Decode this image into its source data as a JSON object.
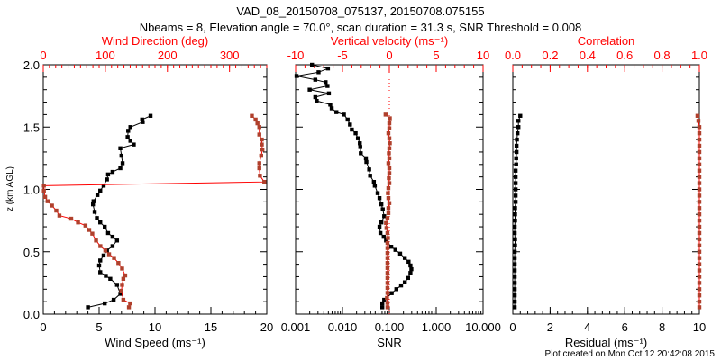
{
  "title": "VAD_08_20150708_075137, 20150708.075155",
  "subtitle": "Nbeams = 8, Elevation angle = 70.0°, scan duration = 31.3 s, SNR Threshold = 0.008",
  "footer": "Plot created on Mon Oct 12 20:42:08 2015",
  "colors": {
    "axis_top": "#ff0000",
    "primary": "#000000",
    "secondary_marker": "#b0402c",
    "secondary_line": "#ff0000"
  },
  "chart_data": [
    {
      "type": "line",
      "ylabel": "z (km AGL)",
      "ylim": [
        0,
        2.0
      ],
      "yticks": [
        "0.0",
        "0.5",
        "1.0",
        "1.5",
        "2.0"
      ],
      "xlabel": "Wind Speed (ms⁻¹)",
      "xlim": [
        0,
        20
      ],
      "xticks": [
        "0",
        "5",
        "10",
        "15",
        "20"
      ],
      "top_xlabel": "Wind Direction (deg)",
      "top_xlim": [
        0,
        360
      ],
      "top_xticks": [
        "0",
        "100",
        "200",
        "300"
      ],
      "series": [
        {
          "name": "Wind Speed",
          "axis": "bottom",
          "z": [
            0.055,
            0.086,
            0.115,
            0.163,
            0.235,
            0.283,
            0.307,
            0.336,
            0.39,
            0.43,
            0.47,
            0.51,
            0.545,
            0.59,
            0.62,
            0.65,
            0.7,
            0.735,
            0.77,
            0.82,
            0.88,
            0.905,
            0.955,
            0.99,
            1.03,
            1.08,
            1.12,
            1.14,
            1.17,
            1.21,
            1.27,
            1.33,
            1.36,
            1.39,
            1.42,
            1.47,
            1.5,
            1.54,
            1.56,
            1.59
          ],
          "values": [
            4.0,
            5.5,
            6.3,
            6.9,
            6.6,
            6.0,
            5.6,
            5.1,
            5.0,
            5.1,
            5.4,
            5.7,
            6.2,
            6.6,
            6.2,
            5.8,
            5.5,
            5.1,
            4.8,
            4.6,
            4.45,
            4.5,
            4.85,
            5.1,
            5.4,
            5.7,
            5.8,
            6.2,
            6.9,
            7.1,
            7.0,
            6.9,
            8.1,
            7.8,
            7.55,
            7.6,
            7.8,
            8.9,
            8.85,
            9.6
          ]
        },
        {
          "name": "Wind Direction",
          "axis": "top",
          "z": [
            0.055,
            0.086,
            0.115,
            0.187,
            0.235,
            0.283,
            0.31,
            0.365,
            0.41,
            0.45,
            0.48,
            0.51,
            0.545,
            0.59,
            0.645,
            0.675,
            0.71,
            0.735,
            0.765,
            0.79,
            0.83,
            0.87,
            0.905,
            0.94,
            0.99,
            1.03,
            1.06,
            1.11,
            1.17,
            1.21,
            1.27,
            1.32,
            1.36,
            1.4,
            1.44,
            1.5,
            1.53,
            1.56,
            1.59
          ],
          "values": [
            138,
            140,
            129,
            126,
            127,
            129,
            132,
            127,
            121,
            114,
            106,
            100,
            92,
            85,
            79,
            74,
            68,
            56,
            45,
            26,
            21,
            14,
            7,
            3,
            1,
            1,
            356,
            349,
            348,
            348,
            351,
            353,
            352,
            352,
            348,
            348,
            345,
            342,
            336
          ]
        }
      ]
    },
    {
      "type": "line",
      "xlabel": "SNR",
      "xscale": "log",
      "xlim": [
        0.001,
        10
      ],
      "xticks": [
        "0.001",
        "0.010",
        "0.100",
        "1.000",
        "10.000"
      ],
      "top_xlabel": "Vertical velocity (ms⁻¹)",
      "top_xlim": [
        -10,
        10
      ],
      "top_xticks": [
        "-10",
        "-5",
        "0",
        "5",
        "10"
      ],
      "series": [
        {
          "name": "SNR",
          "axis": "bottom",
          "z": [
            0.055,
            0.086,
            0.115,
            0.168,
            0.2,
            0.23,
            0.255,
            0.29,
            0.33,
            0.36,
            0.39,
            0.42,
            0.45,
            0.485,
            0.515,
            0.54,
            0.59,
            0.62,
            0.65,
            0.7,
            0.735,
            0.785,
            0.84,
            0.88,
            0.93,
            0.97,
            1.03,
            1.06,
            1.11,
            1.16,
            1.22,
            1.25,
            1.29,
            1.34,
            1.37,
            1.41,
            1.45,
            1.48,
            1.52,
            1.56,
            1.6,
            1.62,
            1.65,
            1.68,
            1.71,
            1.74,
            1.77,
            1.8,
            1.83,
            1.86,
            1.88,
            1.91,
            1.94,
            1.97,
            2.0
          ],
          "log10_values": [
            -1.15,
            -1.15,
            -1.11,
            -0.95,
            -0.85,
            -0.75,
            -0.67,
            -0.6,
            -0.55,
            -0.53,
            -0.55,
            -0.59,
            -0.67,
            -0.77,
            -0.87,
            -0.96,
            -1.07,
            -1.12,
            -1.19,
            -1.21,
            -1.17,
            -1.11,
            -1.14,
            -1.17,
            -1.21,
            -1.25,
            -1.31,
            -1.33,
            -1.41,
            -1.43,
            -1.49,
            -1.5,
            -1.61,
            -1.62,
            -1.63,
            -1.67,
            -1.72,
            -1.8,
            -1.84,
            -1.89,
            -1.97,
            -2.13,
            -2.23,
            -2.26,
            -2.55,
            -2.58,
            -2.29,
            -2.7,
            -2.32,
            -2.36,
            -2.58,
            -2.98,
            -2.51,
            -2.31,
            -2.65
          ]
        },
        {
          "name": "Vertical velocity",
          "axis": "top",
          "z": [
            0.055,
            0.09,
            0.13,
            0.17,
            0.21,
            0.25,
            0.29,
            0.33,
            0.37,
            0.41,
            0.45,
            0.49,
            0.53,
            0.57,
            0.61,
            0.65,
            0.69,
            0.73,
            0.77,
            0.81,
            0.85,
            0.89,
            0.93,
            0.97,
            1.01,
            1.05,
            1.09,
            1.13,
            1.17,
            1.21,
            1.25,
            1.29,
            1.33,
            1.37,
            1.41,
            1.45,
            1.49,
            1.53,
            1.57,
            1.6
          ],
          "values": [
            -0.2,
            -0.2,
            -0.25,
            -0.2,
            -0.2,
            -0.2,
            -0.2,
            -0.2,
            -0.2,
            -0.2,
            -0.2,
            -0.2,
            -0.2,
            -0.2,
            -0.15,
            -0.2,
            -0.3,
            -0.35,
            -0.2,
            -0.1,
            -0.1,
            0.0,
            -0.1,
            -0.15,
            -0.1,
            0.0,
            -0.05,
            0.0,
            0.0,
            -0.1,
            0.0,
            -0.05,
            0.0,
            0.05,
            0.0,
            -0.1,
            0.0,
            0.0,
            0.05,
            -0.4
          ]
        }
      ]
    },
    {
      "type": "line",
      "xlabel": "Residual (ms⁻¹)",
      "xlim": [
        0,
        10
      ],
      "xticks": [
        "0",
        "2",
        "4",
        "6",
        "8",
        "10"
      ],
      "top_xlabel": "Correlation",
      "top_xlim": [
        0,
        1
      ],
      "top_xticks": [
        "0.0",
        "0.2",
        "0.4",
        "0.6",
        "0.8",
        "1.0"
      ],
      "series": [
        {
          "name": "Residual",
          "axis": "bottom",
          "z": [
            0.055,
            0.1,
            0.15,
            0.2,
            0.25,
            0.3,
            0.35,
            0.4,
            0.45,
            0.5,
            0.55,
            0.6,
            0.65,
            0.7,
            0.75,
            0.8,
            0.85,
            0.9,
            0.95,
            1.0,
            1.05,
            1.1,
            1.15,
            1.2,
            1.25,
            1.3,
            1.35,
            1.4,
            1.45,
            1.5,
            1.55,
            1.59
          ],
          "values": [
            0.1,
            0.1,
            0.1,
            0.1,
            0.1,
            0.1,
            0.1,
            0.1,
            0.1,
            0.1,
            0.12,
            0.12,
            0.1,
            0.1,
            0.12,
            0.12,
            0.12,
            0.15,
            0.15,
            0.15,
            0.15,
            0.15,
            0.15,
            0.18,
            0.18,
            0.2,
            0.2,
            0.22,
            0.25,
            0.3,
            0.3,
            0.4
          ]
        },
        {
          "name": "Correlation",
          "axis": "top",
          "z": [
            0.055,
            0.1,
            0.15,
            0.2,
            0.25,
            0.3,
            0.35,
            0.4,
            0.45,
            0.5,
            0.55,
            0.6,
            0.65,
            0.7,
            0.75,
            0.8,
            0.85,
            0.9,
            0.95,
            1.0,
            1.05,
            1.1,
            1.15,
            1.2,
            1.25,
            1.3,
            1.35,
            1.4,
            1.45,
            1.5,
            1.55,
            1.59
          ],
          "values": [
            1.0,
            1.0,
            1.0,
            1.0,
            1.0,
            1.0,
            1.0,
            1.0,
            1.0,
            1.0,
            1.0,
            1.0,
            1.0,
            1.0,
            1.0,
            1.0,
            1.0,
            1.0,
            1.0,
            1.0,
            1.0,
            1.0,
            1.0,
            1.0,
            1.0,
            1.0,
            1.0,
            1.0,
            1.0,
            1.0,
            0.995,
            0.99
          ]
        }
      ]
    }
  ]
}
